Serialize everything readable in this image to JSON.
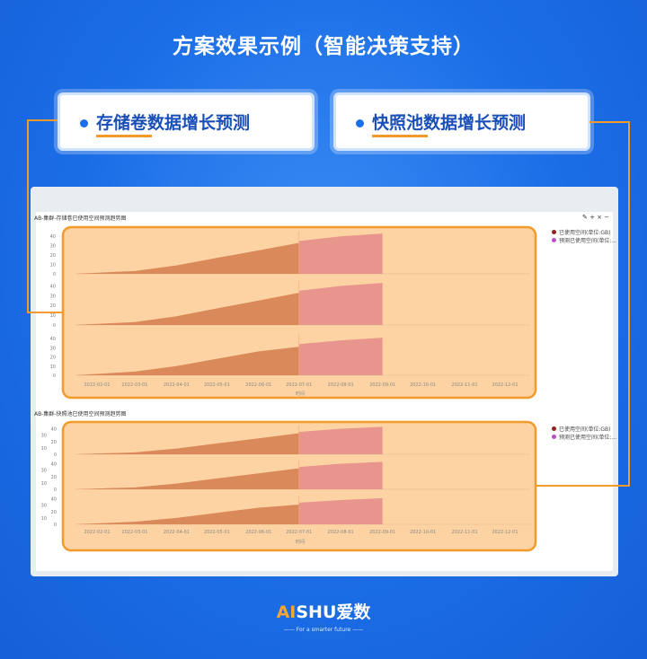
{
  "header": {
    "title": "方案效果示例（智能决策支持）"
  },
  "cards": [
    {
      "label": "存储卷数据增长预测"
    },
    {
      "label": "快照池数据增长预测"
    }
  ],
  "toolbar": {
    "icons": [
      "pencil-icon",
      "plus-icon",
      "close-icon",
      "minus-icon"
    ],
    "text": "✎ + × −"
  },
  "legend": {
    "actual": "已使用空间(单位:GB)",
    "predicted": "预测已使用空间(单位:..."
  },
  "colors": {
    "actual": "#d9895a",
    "predicted": "#e8958e",
    "highlight": "#fdd3a3",
    "frame": "#f39a2b",
    "legend_actual": "#8b2323",
    "legend_predicted": "#b84fc4"
  },
  "logo": {
    "ai": "AI",
    "rest": "SHU爱数",
    "tagline": "—— For a smarter future ——"
  },
  "chart_data": [
    {
      "type": "area",
      "title": "AB-集群-存储卷已使用空间预测趋势图",
      "xlabel": "时间",
      "x_ticks": [
        "2022-02-01",
        "2022-03-01",
        "2022-04-01",
        "2022-05-01",
        "2022-06-01",
        "2022-07-01",
        "2022-08-01",
        "2022-09-01",
        "2022-10-01",
        "2022-11-01",
        "2022-12-01"
      ],
      "y_ticks": [
        0,
        10,
        20,
        30,
        40
      ],
      "ylim": [
        0,
        45
      ],
      "panels": [
        {
          "series": [
            {
              "name": "已使用空间(单位:GB)",
              "x": [
                "2022-01-15",
                "2022-03-01",
                "2022-04-01",
                "2022-05-01",
                "2022-06-01",
                "2022-07-01"
              ],
              "values": [
                0,
                3,
                9,
                17,
                25,
                33
              ]
            },
            {
              "name": "预测已使用空间(单位:...",
              "x": [
                "2022-07-01",
                "2022-08-01",
                "2022-09-01"
              ],
              "values": [
                35,
                40,
                43
              ]
            }
          ]
        },
        {
          "series": [
            {
              "name": "已使用空间(单位:GB)",
              "x": [
                "2022-01-15",
                "2022-03-01",
                "2022-04-01",
                "2022-05-01",
                "2022-06-01",
                "2022-07-01"
              ],
              "values": [
                0,
                3,
                9,
                17,
                25,
                33
              ]
            },
            {
              "name": "预测已使用空间(单位:...",
              "x": [
                "2022-07-01",
                "2022-08-01",
                "2022-09-01"
              ],
              "values": [
                35,
                40,
                43
              ]
            }
          ]
        },
        {
          "series": [
            {
              "name": "已使用空间(单位:GB)",
              "x": [
                "2022-01-15",
                "2022-03-01",
                "2022-04-01",
                "2022-05-01",
                "2022-06-01",
                "2022-07-01"
              ],
              "values": [
                0,
                4,
                10,
                18,
                26,
                31
              ]
            },
            {
              "name": "预测已使用空间(单位:...",
              "x": [
                "2022-07-01",
                "2022-08-01",
                "2022-09-01"
              ],
              "values": [
                34,
                38,
                41
              ]
            }
          ]
        }
      ]
    },
    {
      "type": "area",
      "title": "AB-集群-快照池已使用空间预测趋势图",
      "xlabel": "时间",
      "x_ticks": [
        "2022-02-01",
        "2022-03-01",
        "2022-04-01",
        "2022-05-01",
        "2022-06-01",
        "2022-07-01",
        "2022-08-01",
        "2022-09-01",
        "2022-10-01",
        "2022-11-01",
        "2022-12-01"
      ],
      "y_ticks": [
        0,
        10,
        20,
        30,
        40
      ],
      "ylim": [
        0,
        45
      ],
      "panels": [
        {
          "series": [
            {
              "name": "已使用空间(单位:GB)",
              "x": [
                "2022-01-15",
                "2022-03-01",
                "2022-04-01",
                "2022-05-01",
                "2022-06-01",
                "2022-07-01"
              ],
              "values": [
                0,
                3,
                9,
                17,
                25,
                33
              ]
            },
            {
              "name": "预测已使用空间(单位:...",
              "x": [
                "2022-07-01",
                "2022-08-01",
                "2022-09-01"
              ],
              "values": [
                35,
                40,
                43
              ]
            }
          ]
        },
        {
          "series": [
            {
              "name": "已使用空间(单位:GB)",
              "x": [
                "2022-01-15",
                "2022-03-01",
                "2022-04-01",
                "2022-05-01",
                "2022-06-01",
                "2022-07-01"
              ],
              "values": [
                0,
                3,
                9,
                17,
                25,
                33
              ]
            },
            {
              "name": "预测已使用空间(单位:...",
              "x": [
                "2022-07-01",
                "2022-08-01",
                "2022-09-01"
              ],
              "values": [
                35,
                40,
                43
              ]
            }
          ]
        },
        {
          "series": [
            {
              "name": "已使用空间(单位:GB)",
              "x": [
                "2022-01-15",
                "2022-03-01",
                "2022-04-01",
                "2022-05-01",
                "2022-06-01",
                "2022-07-01"
              ],
              "values": [
                0,
                4,
                10,
                18,
                26,
                31
              ]
            },
            {
              "name": "预测已使用空间(单位:...",
              "x": [
                "2022-07-01",
                "2022-08-01",
                "2022-09-01"
              ],
              "values": [
                34,
                38,
                41
              ]
            }
          ]
        }
      ]
    }
  ]
}
